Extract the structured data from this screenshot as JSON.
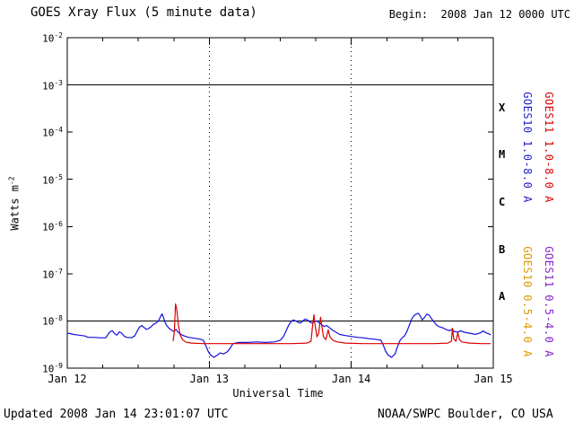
{
  "title": "GOES Xray Flux (5 minute data)",
  "begin_label": "Begin:  2008 Jan 12 0000 UTC",
  "updated": "Updated 2008 Jan 14 23:01:07 UTC",
  "credit": "NOAA/SWPC Boulder, CO USA",
  "axes": {
    "ylabel_base": "Watts m",
    "ylabel_exp": "-2",
    "xlabel": "Universal Time",
    "y_base": "10",
    "y_tick_exponents": [
      "-2",
      "-3",
      "-4",
      "-5",
      "-6",
      "-7",
      "-8",
      "-9"
    ],
    "x_ticks": [
      "Jan 12",
      "Jan 13",
      "Jan 14",
      "Jan 15"
    ],
    "class_letters": [
      "X",
      "M",
      "C",
      "B",
      "A"
    ]
  },
  "legend": [
    {
      "label": "GOES10 1.0-8.0 A",
      "color": "#2222cc"
    },
    {
      "label": "GOES11 1.0-8.0 A",
      "color": "#dd0000"
    },
    {
      "label": "GOES10 0.5-4.0 A",
      "color": "#dd9900"
    },
    {
      "label": "GOES11 0.5-4.0 A",
      "color": "#8822cc"
    }
  ],
  "chart_data": {
    "type": "line",
    "title": "GOES Xray Flux (5 minute data)",
    "x_unit": "hours since 2008 Jan 12 0000 UTC",
    "x_range": [
      0,
      72
    ],
    "y_scale": "log",
    "y_range": [
      1e-09,
      0.01
    ],
    "grid": {
      "vertical_dotted_hours": [
        24,
        48
      ],
      "horizontal_solid_flux": [
        0.001,
        1e-08
      ],
      "x_minor_tick_hours": 6
    },
    "series": [
      {
        "name": "GOES10 1.0-8.0 A",
        "color": "#1111dd",
        "points": [
          [
            0,
            5.5e-09
          ],
          [
            0.5,
            5.4e-09
          ],
          [
            1,
            5.2e-09
          ],
          [
            2,
            5e-09
          ],
          [
            3,
            4.8e-09
          ],
          [
            3.5,
            4.5e-09
          ],
          [
            4.5,
            4.5e-09
          ],
          [
            5.5,
            4.4e-09
          ],
          [
            6.5,
            4.4e-09
          ],
          [
            6.8,
            5e-09
          ],
          [
            7.2,
            5.9e-09
          ],
          [
            7.6,
            6.2e-09
          ],
          [
            8,
            5.4e-09
          ],
          [
            8.4,
            5e-09
          ],
          [
            8.8,
            5.9e-09
          ],
          [
            9.2,
            5.5e-09
          ],
          [
            9.6,
            4.8e-09
          ],
          [
            10,
            4.5e-09
          ],
          [
            10.8,
            4.4e-09
          ],
          [
            11.4,
            4.8e-09
          ],
          [
            11.8,
            6e-09
          ],
          [
            12.2,
            7.4e-09
          ],
          [
            12.6,
            8e-09
          ],
          [
            13,
            7.2e-09
          ],
          [
            13.4,
            6.6e-09
          ],
          [
            13.8,
            7e-09
          ],
          [
            14.2,
            7.6e-09
          ],
          [
            14.6,
            8.6e-09
          ],
          [
            15,
            9e-09
          ],
          [
            15.4,
            1e-08
          ],
          [
            15.8,
            1.25e-08
          ],
          [
            16,
            1.4e-08
          ],
          [
            16.2,
            1.25e-08
          ],
          [
            16.5,
            9.5e-09
          ],
          [
            16.8,
            8e-09
          ],
          [
            17.2,
            7e-09
          ],
          [
            17.6,
            6.4e-09
          ],
          [
            18,
            6e-09
          ],
          [
            18.4,
            6.6e-09
          ],
          [
            18.7,
            5.8e-09
          ],
          [
            19.2,
            5.2e-09
          ],
          [
            19.8,
            4.8e-09
          ],
          [
            20.5,
            4.5e-09
          ],
          [
            21.5,
            4.3e-09
          ],
          [
            22.5,
            4.1e-09
          ],
          [
            23,
            3.9e-09
          ],
          [
            23.4,
            3e-09
          ],
          [
            23.8,
            2.3e-09
          ],
          [
            24.2,
            1.9e-09
          ],
          [
            24.8,
            1.7e-09
          ],
          [
            25.4,
            1.9e-09
          ],
          [
            25.8,
            2.1e-09
          ],
          [
            26.4,
            2e-09
          ],
          [
            27,
            2.2e-09
          ],
          [
            27.5,
            2.6e-09
          ],
          [
            28,
            3.3e-09
          ],
          [
            29,
            3.5e-09
          ],
          [
            30.5,
            3.5e-09
          ],
          [
            32,
            3.6e-09
          ],
          [
            33.5,
            3.5e-09
          ],
          [
            35,
            3.6e-09
          ],
          [
            36,
            3.9e-09
          ],
          [
            36.5,
            4.6e-09
          ],
          [
            37,
            6.2e-09
          ],
          [
            37.4,
            8e-09
          ],
          [
            37.8,
            9.6e-09
          ],
          [
            38.2,
            1.05e-08
          ],
          [
            38.6,
            1e-08
          ],
          [
            39,
            9.4e-09
          ],
          [
            39.4,
            9e-09
          ],
          [
            39.8,
            1e-08
          ],
          [
            40.2,
            1.1e-08
          ],
          [
            40.6,
            1.05e-08
          ],
          [
            41,
            9.4e-09
          ],
          [
            41.4,
            9e-09
          ],
          [
            41.8,
            9.8e-09
          ],
          [
            42.2,
            1e-08
          ],
          [
            42.6,
            9e-09
          ],
          [
            43,
            8.4e-09
          ],
          [
            43.4,
            7.6e-09
          ],
          [
            43.8,
            8e-09
          ],
          [
            44.2,
            7.4e-09
          ],
          [
            44.8,
            6.4e-09
          ],
          [
            45.4,
            5.8e-09
          ],
          [
            46,
            5.2e-09
          ],
          [
            47,
            4.9e-09
          ],
          [
            48,
            4.7e-09
          ],
          [
            49,
            4.5e-09
          ],
          [
            50,
            4.4e-09
          ],
          [
            51,
            4.2e-09
          ],
          [
            52,
            4.1e-09
          ],
          [
            53,
            3.9e-09
          ],
          [
            53.4,
            3.1e-09
          ],
          [
            53.8,
            2.3e-09
          ],
          [
            54.2,
            1.9e-09
          ],
          [
            54.8,
            1.7e-09
          ],
          [
            55.4,
            2e-09
          ],
          [
            55.8,
            2.8e-09
          ],
          [
            56.2,
            3.8e-09
          ],
          [
            56.6,
            4.4e-09
          ],
          [
            57,
            4.8e-09
          ],
          [
            57.4,
            6e-09
          ],
          [
            57.8,
            8e-09
          ],
          [
            58.2,
            1.1e-08
          ],
          [
            58.6,
            1.3e-08
          ],
          [
            59,
            1.4e-08
          ],
          [
            59.3,
            1.45e-08
          ],
          [
            59.6,
            1.3e-08
          ],
          [
            60,
            1.05e-08
          ],
          [
            60.4,
            1.2e-08
          ],
          [
            60.8,
            1.4e-08
          ],
          [
            61.2,
            1.3e-08
          ],
          [
            61.6,
            1.1e-08
          ],
          [
            62,
            9.5e-09
          ],
          [
            62.4,
            8.2e-09
          ],
          [
            62.8,
            7.6e-09
          ],
          [
            63.4,
            7.2e-09
          ],
          [
            64,
            6.6e-09
          ],
          [
            64.6,
            6.2e-09
          ],
          [
            65,
            6.6e-09
          ],
          [
            65.4,
            6e-09
          ],
          [
            66,
            5.8e-09
          ],
          [
            66.5,
            6.2e-09
          ],
          [
            67,
            5.8e-09
          ],
          [
            68,
            5.5e-09
          ],
          [
            69,
            5.2e-09
          ],
          [
            69.8,
            5.6e-09
          ],
          [
            70.3,
            6.1e-09
          ],
          [
            70.8,
            5.6e-09
          ],
          [
            71.3,
            5.3e-09
          ],
          [
            71.5,
            5.1e-09
          ]
        ]
      },
      {
        "name": "GOES11 1.0-8.0 A",
        "color": "#dd0000",
        "points": [
          [
            17.9,
            3.8e-09
          ],
          [
            18.1,
            6e-09
          ],
          [
            18.3,
            2.3e-08
          ],
          [
            18.5,
            1.8e-08
          ],
          [
            18.8,
            8e-09
          ],
          [
            19.1,
            5e-09
          ],
          [
            19.5,
            4e-09
          ],
          [
            20,
            3.6e-09
          ],
          [
            21,
            3.4e-09
          ],
          [
            23,
            3.3e-09
          ],
          [
            26,
            3.3e-09
          ],
          [
            30,
            3.3e-09
          ],
          [
            34,
            3.3e-09
          ],
          [
            38,
            3.3e-09
          ],
          [
            40.5,
            3.4e-09
          ],
          [
            41.2,
            3.7e-09
          ],
          [
            41.5,
            9e-09
          ],
          [
            41.7,
            1.35e-08
          ],
          [
            41.9,
            8e-09
          ],
          [
            42.2,
            4.6e-09
          ],
          [
            42.5,
            5.5e-09
          ],
          [
            42.8,
            1.2e-08
          ],
          [
            43,
            8e-09
          ],
          [
            43.3,
            4.6e-09
          ],
          [
            43.7,
            4e-09
          ],
          [
            44.1,
            6.5e-09
          ],
          [
            44.4,
            4.6e-09
          ],
          [
            44.9,
            3.9e-09
          ],
          [
            45.6,
            3.6e-09
          ],
          [
            47,
            3.4e-09
          ],
          [
            50,
            3.3e-09
          ],
          [
            54,
            3.3e-09
          ],
          [
            58,
            3.3e-09
          ],
          [
            62,
            3.3e-09
          ],
          [
            64.3,
            3.4e-09
          ],
          [
            64.9,
            3.7e-09
          ],
          [
            65.1,
            7e-09
          ],
          [
            65.3,
            4.2e-09
          ],
          [
            65.7,
            3.7e-09
          ],
          [
            66,
            5.6e-09
          ],
          [
            66.3,
            4e-09
          ],
          [
            66.7,
            3.6e-09
          ],
          [
            68,
            3.4e-09
          ],
          [
            70,
            3.3e-09
          ],
          [
            71.5,
            3.3e-09
          ]
        ]
      }
    ]
  }
}
